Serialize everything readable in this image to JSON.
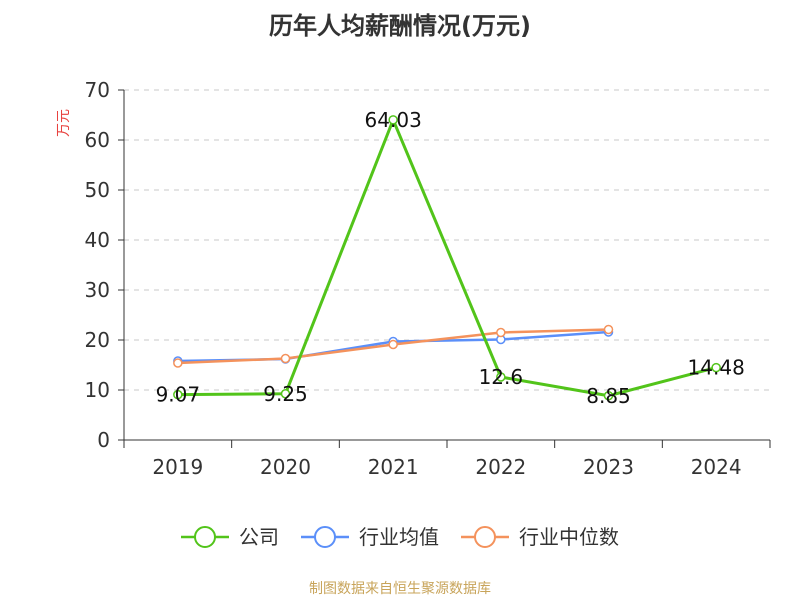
{
  "chart_data": {
    "type": "line",
    "title": "历年人均薪酬情况(万元)",
    "ylabel": "万元",
    "xlabel": "",
    "categories": [
      "2019",
      "2020",
      "2021",
      "2022",
      "2023",
      "2024"
    ],
    "ylim": [
      0,
      70
    ],
    "yticks": [
      0,
      10,
      20,
      30,
      40,
      50,
      60,
      70
    ],
    "grid": true,
    "legend_position": "bottom",
    "series": [
      {
        "name": "公司",
        "color": "#52c41a",
        "values": [
          9.07,
          9.25,
          64.03,
          12.6,
          8.85,
          14.48
        ],
        "labels": [
          "9.07",
          "9.25",
          "64.03",
          "12.6",
          "8.85",
          "14.48"
        ]
      },
      {
        "name": "行业均值",
        "color": "#5b8ff9",
        "values": [
          15.8,
          16.2,
          19.7,
          20.1,
          21.6,
          null
        ]
      },
      {
        "name": "行业中位数",
        "color": "#f4925c",
        "values": [
          15.4,
          16.3,
          19.1,
          21.5,
          22.1,
          null
        ]
      }
    ]
  },
  "source": "制图数据来自恒生聚源数据库"
}
